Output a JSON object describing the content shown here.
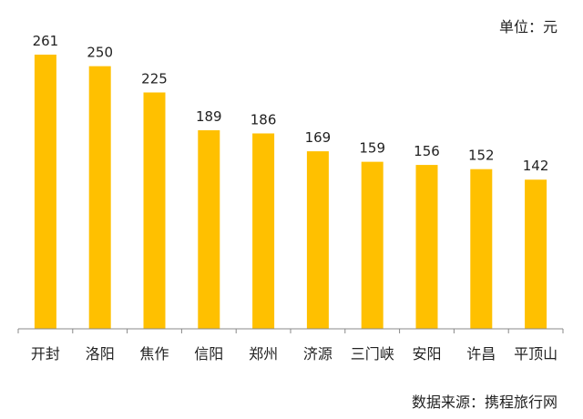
{
  "unit_label": "单位：元",
  "source_label": "数据来源：携程旅行网",
  "colors": {
    "bar": "#FFC000",
    "axis": "#888888",
    "text": "#222222"
  },
  "chart_data": {
    "type": "bar",
    "title": "",
    "xlabel": "",
    "ylabel": "",
    "ylim": [
      0,
      300
    ],
    "grid": false,
    "categories": [
      "开封",
      "洛阳",
      "焦作",
      "信阳",
      "郑州",
      "济源",
      "三门峡",
      "安阳",
      "许昌",
      "平顶山"
    ],
    "values": [
      261,
      250,
      225,
      189,
      186,
      169,
      159,
      156,
      152,
      142
    ],
    "data_labels": true
  }
}
